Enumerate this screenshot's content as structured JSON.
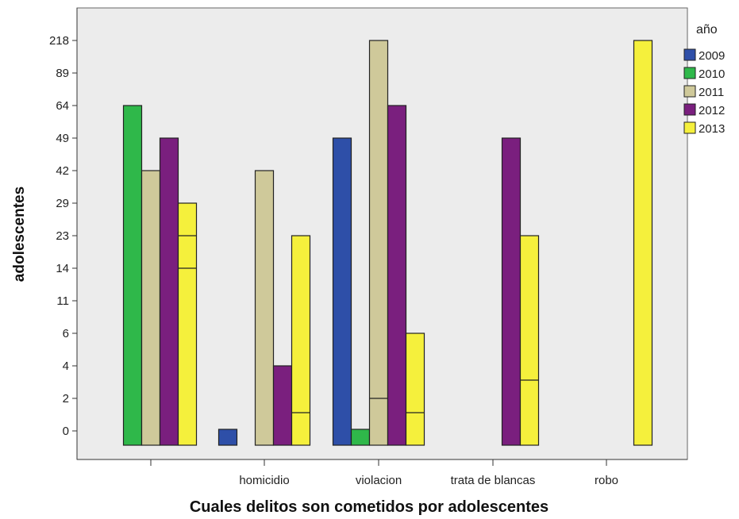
{
  "chart_data": {
    "type": "bar",
    "xlabel": "Cuales delitos son cometidos por adolescentes",
    "ylabel": "adolescentes",
    "y_ticks": [
      "218",
      "89",
      "64",
      "49",
      "42",
      "29",
      "23",
      "14",
      "11",
      "6",
      "4",
      "2",
      "0"
    ],
    "categories": [
      "",
      "homicidio",
      "violacion",
      "trata de blancas",
      "robo"
    ],
    "legend_title": "año",
    "legend_position": "right",
    "grid": false,
    "series": [
      {
        "name": "2009",
        "color": "#2E4FA8",
        "values": [
          null,
          "0",
          "49",
          null,
          null
        ],
        "segments": [
          [],
          [],
          [],
          [],
          []
        ]
      },
      {
        "name": "2010",
        "color": "#2FB84A",
        "values": [
          "64",
          null,
          "0",
          null,
          null
        ],
        "segments": [
          [],
          [],
          [],
          [],
          []
        ]
      },
      {
        "name": "2011",
        "color": "#CFC99A",
        "values": [
          "42",
          "42",
          "218",
          null,
          null
        ],
        "segments": [
          [],
          [],
          [
            "2"
          ],
          [],
          []
        ]
      },
      {
        "name": "2012",
        "color": "#7A1F7E",
        "values": [
          "49",
          "4",
          "64",
          "49",
          null
        ],
        "segments": [
          [],
          [],
          [],
          [],
          []
        ]
      },
      {
        "name": "2013",
        "color": "#F5F03C",
        "values": [
          "29",
          "23",
          "6",
          "23",
          "218"
        ],
        "segments": [
          [
            "23",
            "14"
          ],
          [
            "1"
          ],
          [
            "1"
          ],
          [
            "3"
          ],
          []
        ]
      }
    ]
  }
}
